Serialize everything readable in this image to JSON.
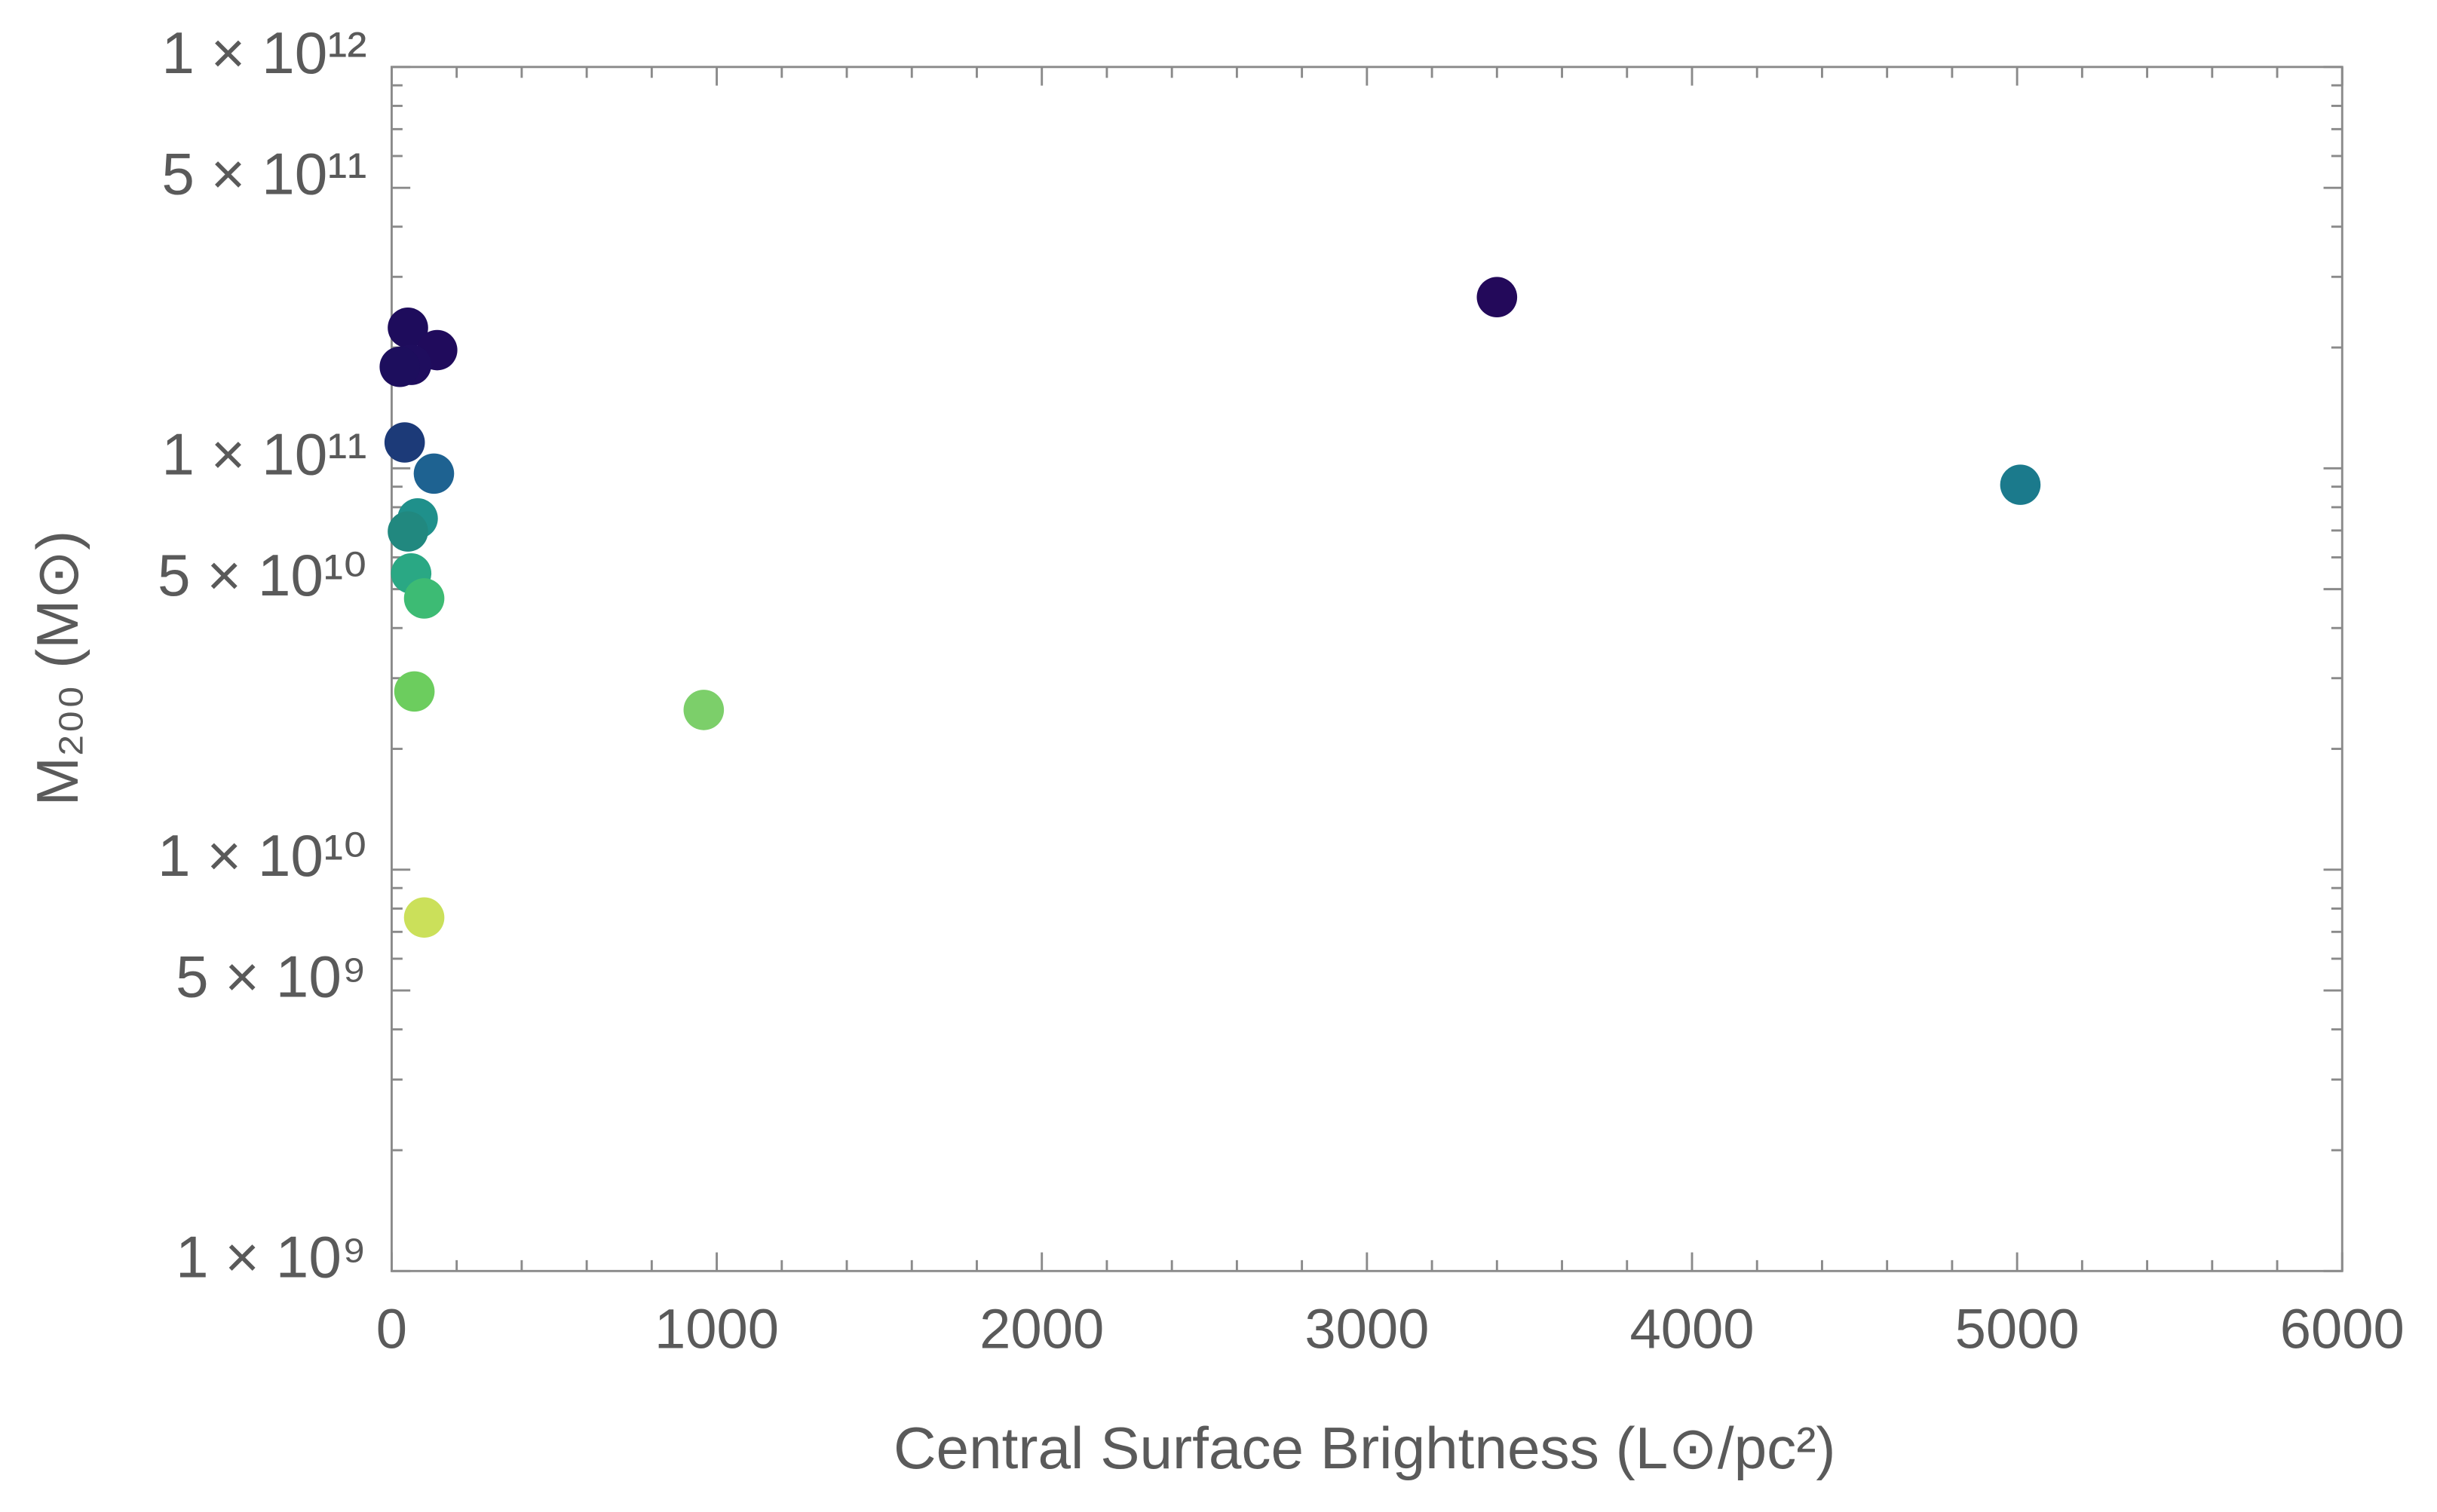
{
  "chart_data": {
    "type": "scatter",
    "xlabel": "Central Surface Brightness (L⊙/pc²)",
    "ylabel": "M₂₀₀ (M⊙)",
    "x": [
      3400,
      5010,
      960,
      50,
      140,
      60,
      25,
      40,
      130,
      80,
      50,
      60,
      100,
      70,
      100
    ],
    "series": [
      {
        "values": [
          267000000000.0,
          91000000000.0,
          25000000000.0,
          224000000000.0,
          197000000000.0,
          181000000000.0,
          179000000000.0,
          116000000000.0,
          97000000000.0,
          75000000000.0,
          69600000000.0,
          54700000000.0,
          47400000000.0,
          27800000000.0,
          7600000000.0
        ],
        "colors": [
          "#23095a",
          "#1b7a8c",
          "#7ccf6a",
          "#1e0c5c",
          "#200b5c",
          "#1f0d5e",
          "#1d0e5d",
          "#1c3a78",
          "#1e6291",
          "#1f908b",
          "#21887f",
          "#2aa884",
          "#3dbb74",
          "#6ccd5e",
          "#cbe05a"
        ]
      }
    ],
    "xlim": [
      0,
      6000
    ],
    "xticks": [
      0,
      1000,
      2000,
      3000,
      4000,
      5000,
      6000
    ],
    "xminorticks": [
      200,
      400,
      600,
      800,
      1200,
      1400,
      1600,
      1800,
      2200,
      2400,
      2600,
      2800,
      3200,
      3400,
      3600,
      3800,
      4200,
      4400,
      4600,
      4800,
      5200,
      5400,
      5600,
      5800
    ],
    "ylim": [
      1000000000.0,
      1000000000000.0
    ],
    "ylog": true,
    "yticks": [
      {
        "value": 1000000000.0,
        "label": "1 × 10⁹"
      },
      {
        "value": 5000000000.0,
        "label": "5 × 10⁹"
      },
      {
        "value": 10000000000.0,
        "label": "1 × 10¹⁰"
      },
      {
        "value": 50000000000.0,
        "label": "5 × 10¹⁰"
      },
      {
        "value": 100000000000.0,
        "label": "1 × 10¹¹"
      },
      {
        "value": 500000000000.0,
        "label": "5 × 10¹¹"
      },
      {
        "value": 1000000000000.0,
        "label": "1 × 10¹²"
      }
    ],
    "yminorticks": [
      2000000000.0,
      3000000000.0,
      4000000000.0,
      6000000000.0,
      7000000000.0,
      8000000000.0,
      9000000000.0,
      20000000000.0,
      30000000000.0,
      40000000000.0,
      60000000000.0,
      70000000000.0,
      80000000000.0,
      90000000000.0,
      200000000000.0,
      300000000000.0,
      400000000000.0,
      600000000000.0,
      700000000000.0,
      800000000000.0,
      900000000000.0
    ]
  }
}
